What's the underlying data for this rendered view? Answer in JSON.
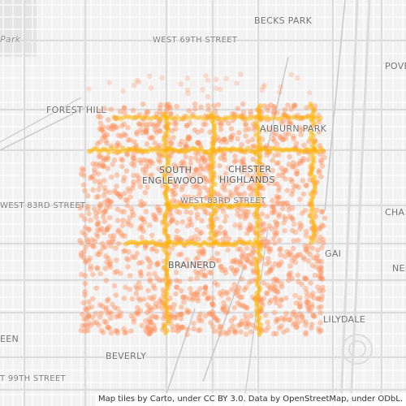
{
  "labels": {
    "becks_park": "BECKS PARK",
    "park": "Park",
    "west_69th": "WEST 69TH STREET",
    "forest_hill": "FOREST HILL",
    "auburn_park": "AUBURN PARK",
    "pove": "POVE",
    "south": "SOUTH",
    "englewood": "ENGLEWOOD",
    "chester": "CHESTER",
    "highlands": "HIGHLANDS",
    "west_83rd_left": "WEST 83RD STREET",
    "west_83rd_mid": "WEST 83RD STREET",
    "cha": "CHA",
    "gai": "GAI",
    "nel": "NEL",
    "brainerd": "BRAINERD",
    "lilydale": "LILYDALE",
    "een": "EEN",
    "beverly": "BEVERLY",
    "west_99th": "T 99TH STREET"
  },
  "attribution": "Map tiles by Carto, under CC BY 3.0. Data by OpenStreetMap, under ODbL.",
  "colors": {
    "background": "#f2f2f2",
    "minor_road": "#ffffff",
    "major_road": "#dcdcdc",
    "rail": "#c8c8c8",
    "dot": "#ff8c55",
    "hot": "#ffb400"
  }
}
